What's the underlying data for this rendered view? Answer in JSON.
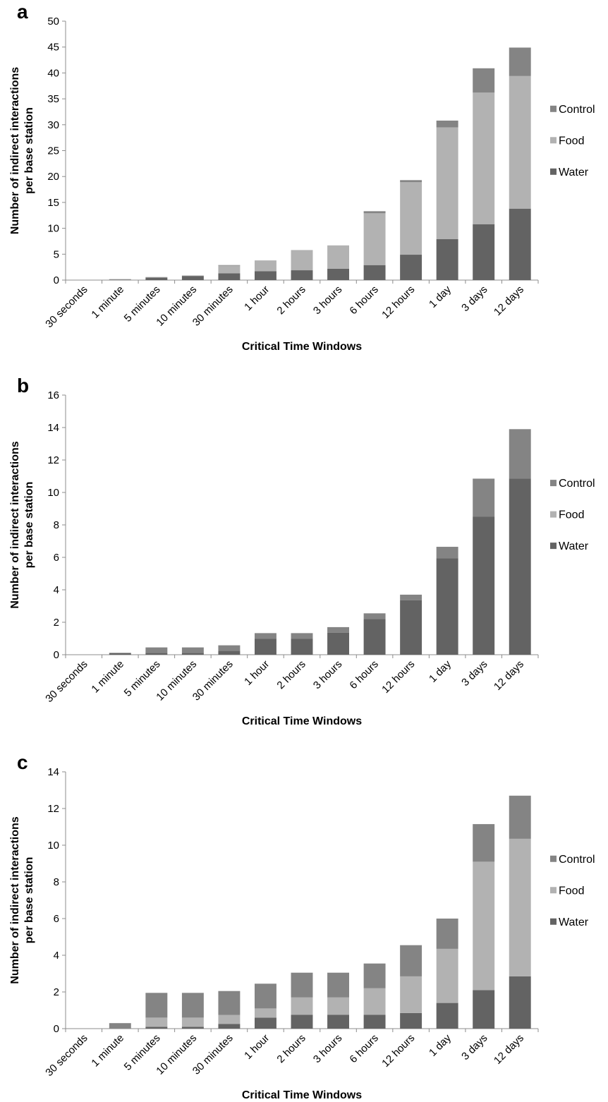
{
  "colors": {
    "control": "#848484",
    "food": "#b2b2b2",
    "water": "#636363",
    "axis": "#8c8c8c"
  },
  "chart_data": [
    {
      "panel_label": "a",
      "type": "bar",
      "stacked": true,
      "xlabel": "Critical Time Windows",
      "ylabel_lines": [
        "Number of indirect interactions",
        "per base station"
      ],
      "ylim": [
        0,
        50
      ],
      "yticks": [
        0,
        5,
        10,
        15,
        20,
        25,
        30,
        35,
        40,
        45,
        50
      ],
      "categories": [
        "30 seconds",
        "1 minute",
        "5 minutes",
        "10 minutes",
        "30 minutes",
        "1 hour",
        "2 hours",
        "3 hours",
        "6 hours",
        "12 hours",
        "1 day",
        "3 days",
        "12 days"
      ],
      "legend_position": "right",
      "series": [
        {
          "name": "Water",
          "values": [
            0,
            0.1,
            0.5,
            0.8,
            1.3,
            1.7,
            1.9,
            2.2,
            2.9,
            4.9,
            7.9,
            10.8,
            13.8
          ]
        },
        {
          "name": "Food",
          "values": [
            0,
            0.1,
            0.1,
            0.1,
            1.5,
            2.1,
            3.9,
            4.5,
            10.0,
            14.0,
            21.6,
            25.4,
            25.6
          ]
        },
        {
          "name": "Control",
          "values": [
            0,
            0,
            0,
            0,
            0.1,
            0,
            0,
            0,
            0.4,
            0.4,
            1.3,
            4.7,
            5.5
          ]
        }
      ]
    },
    {
      "panel_label": "b",
      "type": "bar",
      "stacked": true,
      "xlabel": "Critical Time Windows",
      "ylabel_lines": [
        "Number of indirect interactions",
        "per base station"
      ],
      "ylim": [
        0,
        16
      ],
      "yticks": [
        0,
        2,
        4,
        6,
        8,
        10,
        12,
        14,
        16
      ],
      "categories": [
        "30 seconds",
        "1 minute",
        "5 minutes",
        "10 minutes",
        "30 minutes",
        "1 hour",
        "2 hours",
        "3 hours",
        "6 hours",
        "12 hours",
        "1 day",
        "3 days",
        "12 days"
      ],
      "legend_position": "right",
      "series": [
        {
          "name": "Water",
          "values": [
            0,
            0.1,
            0.12,
            0.12,
            0.25,
            0.98,
            0.98,
            1.35,
            2.2,
            3.35,
            5.95,
            8.5,
            10.85
          ]
        },
        {
          "name": "Food",
          "values": [
            0,
            0,
            0,
            0,
            0,
            0,
            0,
            0,
            0,
            0,
            0,
            0,
            0
          ]
        },
        {
          "name": "Control",
          "values": [
            0,
            0.02,
            0.33,
            0.33,
            0.33,
            0.35,
            0.35,
            0.35,
            0.35,
            0.35,
            0.7,
            2.35,
            3.05
          ]
        }
      ]
    },
    {
      "panel_label": "c",
      "type": "bar",
      "stacked": true,
      "xlabel": "Critical Time Windows",
      "ylabel_lines": [
        "Number of indirect interactions",
        "per base station"
      ],
      "ylim": [
        0,
        14
      ],
      "yticks": [
        0,
        2,
        4,
        6,
        8,
        10,
        12,
        14
      ],
      "categories": [
        "30 seconds",
        "1 minute",
        "5 minutes",
        "10 minutes",
        "30 minutes",
        "1 hour",
        "2 hours",
        "3 hours",
        "6 hours",
        "12 hours",
        "1 day",
        "3 days",
        "12 days"
      ],
      "legend_position": "right",
      "series": [
        {
          "name": "Water",
          "values": [
            0,
            0,
            0.1,
            0.1,
            0.25,
            0.6,
            0.75,
            0.75,
            0.75,
            0.85,
            1.4,
            2.1,
            2.85
          ]
        },
        {
          "name": "Food",
          "values": [
            0,
            0,
            0.5,
            0.5,
            0.5,
            0.5,
            0.95,
            0.95,
            1.45,
            2.0,
            2.95,
            7.0,
            7.5
          ]
        },
        {
          "name": "Control",
          "values": [
            0,
            0.3,
            1.35,
            1.35,
            1.3,
            1.35,
            1.35,
            1.35,
            1.35,
            1.7,
            1.65,
            2.05,
            2.35
          ]
        }
      ]
    }
  ]
}
